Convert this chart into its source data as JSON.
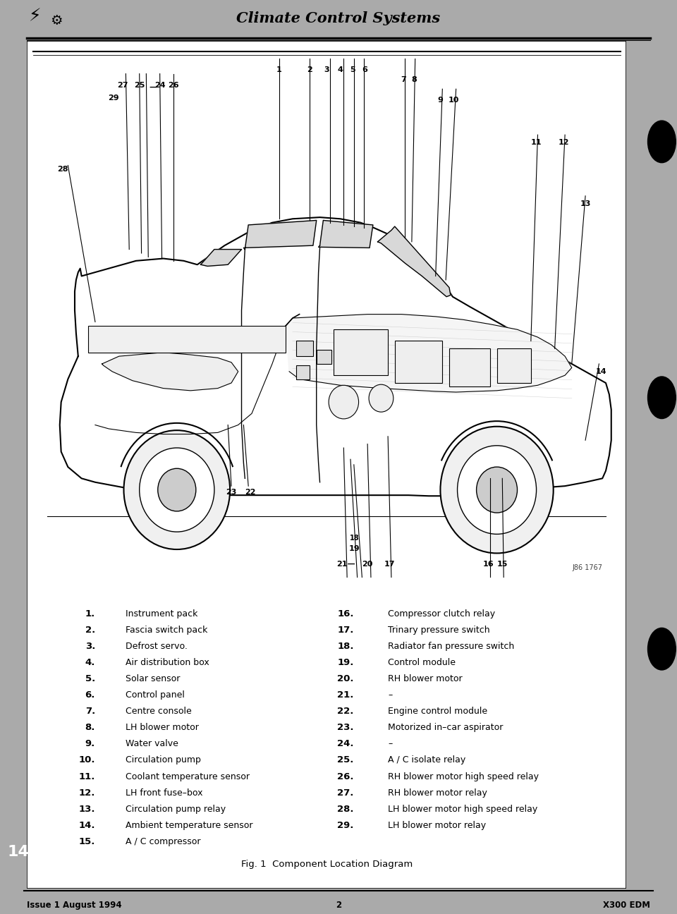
{
  "title": "Climate Control Systems",
  "bg_color": "#ffffff",
  "outer_bg": "#aaaaaa",
  "footer_left": "Issue 1 August 1994",
  "footer_center": "2",
  "footer_right": "X300 EDM",
  "fig_caption": "Fig. 1  Component Location Diagram",
  "page_number": "14",
  "left_items_nums": [
    "1.",
    "2.",
    "3.",
    "4.",
    "5.",
    "6.",
    "7.",
    "8.",
    "9.",
    "10.",
    "11.",
    "12.",
    "13.",
    "14.",
    "15."
  ],
  "left_items_text": [
    "Instrument pack",
    "Fascia switch pack",
    "Defrost servo.",
    "Air distribution box",
    "Solar sensor",
    "Control panel",
    "Centre console",
    "LH blower motor",
    "Water valve",
    "Circulation pump",
    "Coolant temperature sensor",
    "LH front fuse–box",
    "Circulation pump relay",
    "Ambient temperature sensor",
    "A / C compressor"
  ],
  "right_items_nums": [
    "16.",
    "17.",
    "18.",
    "19.",
    "20.",
    "21.",
    "22.",
    "23.",
    "24.",
    "25.",
    "26.",
    "27.",
    "28.",
    "29."
  ],
  "right_items_text": [
    "Compressor clutch relay",
    "Trinary pressure switch",
    "Radiator fan pressure switch",
    "Control module",
    "RH blower motor",
    "–",
    "Engine control module",
    "Motorized in–car aspirator",
    "–",
    "A / C isolate relay",
    "RH blower motor high speed relay",
    "RH blower motor relay",
    "LH blower motor high speed relay",
    "LH blower motor relay"
  ],
  "diagram_ref": "J86 1767"
}
